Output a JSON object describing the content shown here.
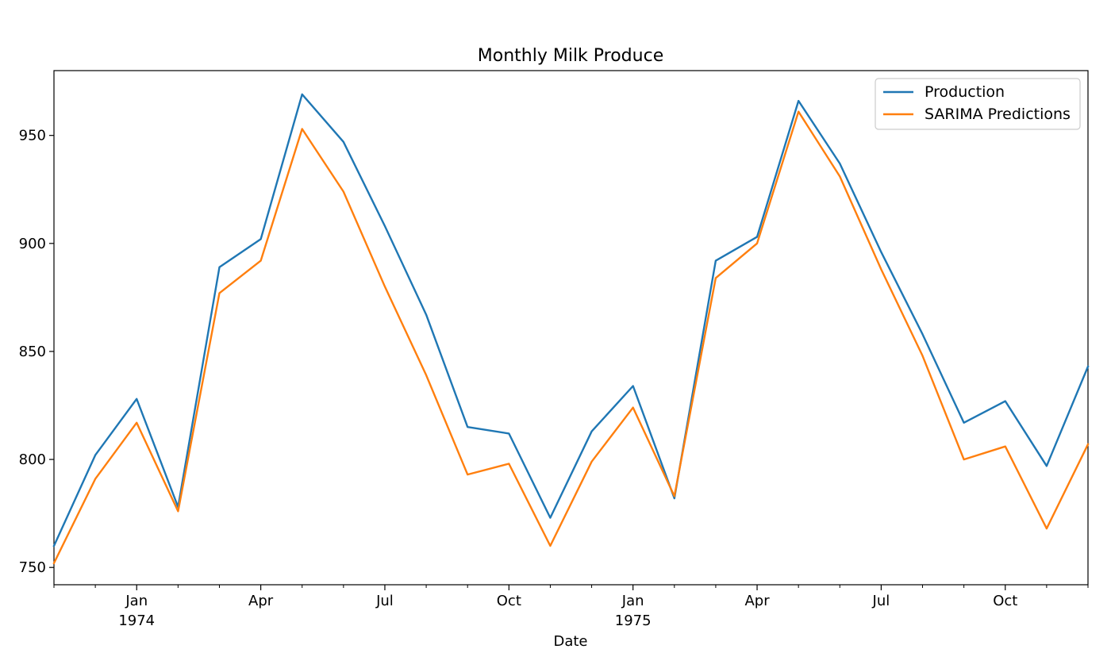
{
  "chart_data": {
    "type": "line",
    "title": "Monthly Milk Produce",
    "xlabel": "Date",
    "ylabel": "",
    "x": [
      "1973-11",
      "1973-12",
      "1974-01",
      "1974-02",
      "1974-03",
      "1974-04",
      "1974-05",
      "1974-06",
      "1974-07",
      "1974-08",
      "1974-09",
      "1974-10",
      "1974-11",
      "1974-12",
      "1975-01",
      "1975-02",
      "1975-03",
      "1975-04",
      "1975-05",
      "1975-06",
      "1975-07",
      "1975-08",
      "1975-09",
      "1975-10",
      "1975-11",
      "1975-12"
    ],
    "series": [
      {
        "name": "Production",
        "color": "#1f77b4",
        "values": [
          760,
          802,
          828,
          778,
          889,
          902,
          969,
          947,
          908,
          867,
          815,
          812,
          773,
          813,
          834,
          782,
          892,
          903,
          966,
          937,
          896,
          858,
          817,
          827,
          797,
          843
        ]
      },
      {
        "name": "SARIMA Predictions",
        "color": "#ff7f0e",
        "values": [
          752,
          791,
          817,
          776,
          877,
          892,
          953,
          924,
          880,
          839,
          793,
          798,
          760,
          799,
          824,
          783,
          884,
          900,
          961,
          931,
          888,
          848,
          800,
          806,
          768,
          807
        ]
      }
    ],
    "ylim": [
      742,
      980
    ],
    "yticks": [
      750,
      800,
      850,
      900,
      950
    ],
    "xticks": [
      {
        "x": "1974-01",
        "label": "Jan",
        "sublabel": "1974"
      },
      {
        "x": "1974-04",
        "label": "Apr",
        "sublabel": ""
      },
      {
        "x": "1974-07",
        "label": "Jul",
        "sublabel": ""
      },
      {
        "x": "1974-10",
        "label": "Oct",
        "sublabel": ""
      },
      {
        "x": "1975-01",
        "label": "Jan",
        "sublabel": "1975"
      },
      {
        "x": "1975-04",
        "label": "Apr",
        "sublabel": ""
      },
      {
        "x": "1975-07",
        "label": "Jul",
        "sublabel": ""
      },
      {
        "x": "1975-10",
        "label": "Oct",
        "sublabel": ""
      }
    ],
    "grid": false,
    "legend_position": "top-right"
  }
}
